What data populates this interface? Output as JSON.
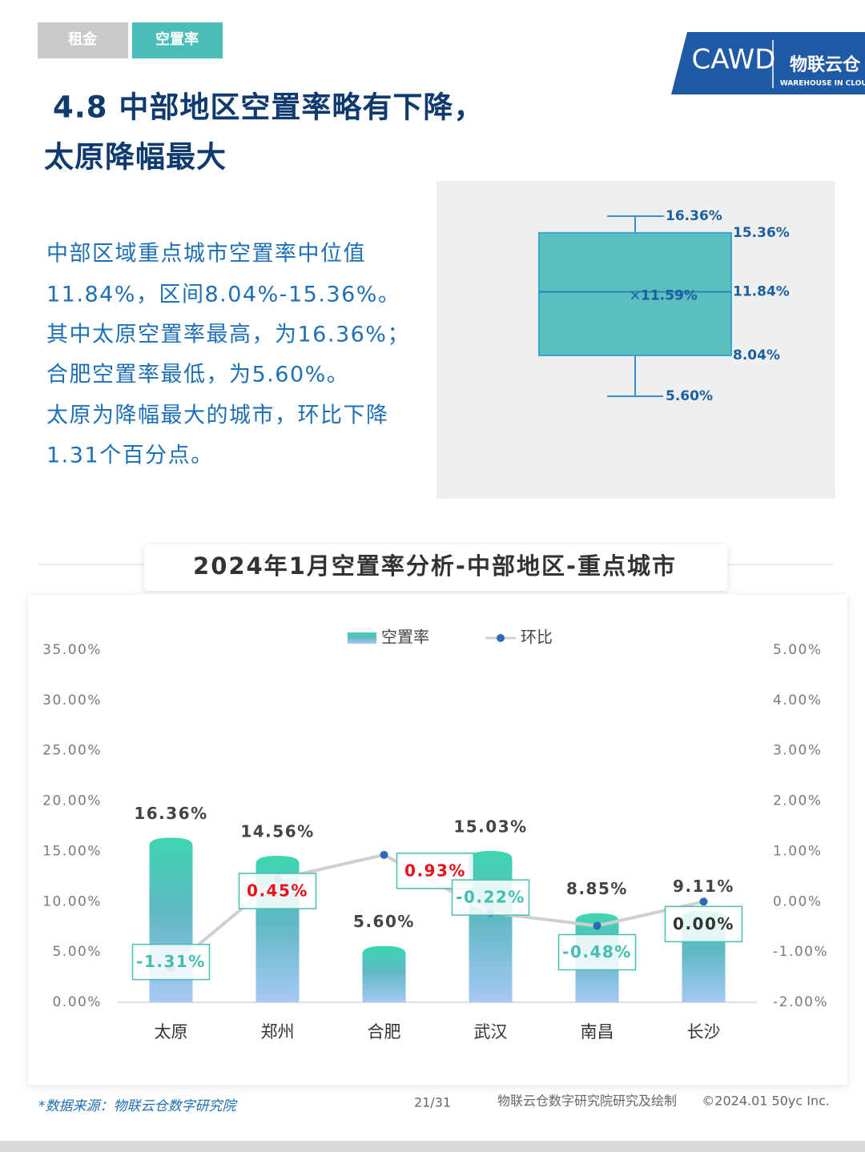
{
  "header": {
    "tabs": [
      "租金",
      "空置率"
    ],
    "logo": {
      "name": "CAWD",
      "brand": "物联云仓",
      "tagline": "WAREHOUSE IN CLOUD"
    }
  },
  "title": [
    "4.8 中部地区空置率略有下降，",
    "太原降幅最大"
  ],
  "summary": [
    "中部区域重点城市空置率中位值",
    "11.84%，区间8.04%-15.36%。",
    "其中太原空置率最高，为16.36%；",
    "合肥空置率最低，为5.60%。",
    "太原为降幅最大的城市，环比下降",
    "1.31个百分点。"
  ],
  "chart_data": [
    {
      "type": "box",
      "color": "#5bbfc0",
      "values": {
        "max": 16.36,
        "q3": 15.36,
        "median": 11.84,
        "mean": 11.59,
        "q1": 8.04,
        "min": 5.6
      },
      "value_labels": {
        "max": "16.36%",
        "q3": "15.36%",
        "median": "11.84%",
        "mean": "11.59%",
        "q1": "8.04%",
        "min": "5.60%"
      }
    },
    {
      "type": "bar-line",
      "title": "2024年1月空置率分析-中部地区-重点城市",
      "legend": "top",
      "categories": [
        "太原",
        "郑州",
        "合肥",
        "武汉",
        "南昌",
        "长沙"
      ],
      "series": [
        {
          "name": "空置率",
          "type": "bar",
          "color": "#3dd6b0",
          "values": [
            16.36,
            14.56,
            5.6,
            15.03,
            8.85,
            9.11
          ],
          "value_labels": [
            "16.36%",
            "14.56%",
            "5.60%",
            "15.03%",
            "8.85%",
            "9.11%"
          ]
        },
        {
          "name": "环比",
          "type": "line",
          "axis": "y2",
          "color": "#2e6bb5",
          "values": [
            -1.31,
            0.45,
            0.93,
            -0.22,
            -0.48,
            0.0
          ],
          "value_labels": [
            "-1.31%",
            "0.45%",
            "0.93%",
            "-0.22%",
            "-0.48%",
            "0.00%"
          ]
        }
      ],
      "ylim": [
        0,
        35
      ],
      "yticks": [
        {
          "value": 0,
          "label": "0.00%"
        },
        {
          "value": 5,
          "label": "5.00%"
        },
        {
          "value": 10,
          "label": "10.00%"
        },
        {
          "value": 15,
          "label": "15.00%"
        },
        {
          "value": 20,
          "label": "20.00%"
        },
        {
          "value": 25,
          "label": "25.00%"
        },
        {
          "value": 30,
          "label": "30.00%"
        },
        {
          "value": 35,
          "label": "35.00%"
        }
      ],
      "y2lim": [
        -2,
        5
      ],
      "y2ticks": [
        {
          "value": -2,
          "label": "-2.00%"
        },
        {
          "value": -1,
          "label": "-1.00%"
        },
        {
          "value": 0,
          "label": "0.00%"
        },
        {
          "value": 1,
          "label": "1.00%"
        },
        {
          "value": 2,
          "label": "2.00%"
        },
        {
          "value": 3,
          "label": "3.00%"
        },
        {
          "value": 4,
          "label": "4.00%"
        },
        {
          "value": 5,
          "label": "5.00%"
        }
      ]
    }
  ],
  "footer": {
    "source": "*数据来源：物联云仓数字研究院",
    "page": "21/31",
    "credit": "物联云仓数字研究院研究及绘制",
    "copyright": "©2024.01 50yc Inc."
  }
}
